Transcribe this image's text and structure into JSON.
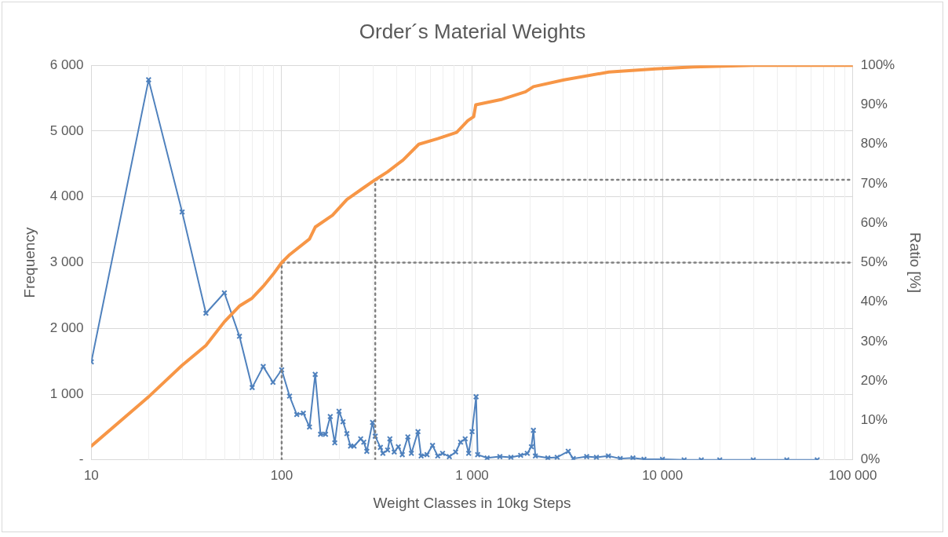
{
  "chart_data": {
    "type": "line",
    "title": "Order´s Material Weights",
    "xlabel": "Weight Classes in 10kg Steps",
    "ylabel": "Frequency",
    "y2label": "Ratio [%]",
    "log": "x",
    "grid": true,
    "legend": false,
    "xlim": [
      10,
      100000
    ],
    "xticks": [
      10,
      100,
      {
        "value": 1000,
        "label": "1 000"
      },
      {
        "value": 10000,
        "label": "10 000"
      },
      {
        "value": 100000,
        "label": "100 000"
      }
    ],
    "ylim": [
      0,
      6000
    ],
    "yticks": [
      {
        "value": 0,
        "label": "-"
      },
      {
        "value": 1000,
        "label": "1 000"
      },
      {
        "value": 2000,
        "label": "2 000"
      },
      {
        "value": 3000,
        "label": "3 000"
      },
      {
        "value": 4000,
        "label": "4 000"
      },
      {
        "value": 5000,
        "label": "5 000"
      },
      {
        "value": 6000,
        "label": "6 000"
      }
    ],
    "y2lim": [
      0,
      100
    ],
    "y2ticks": [
      {
        "value": 0,
        "label": "0%"
      },
      {
        "value": 10,
        "label": "10%"
      },
      {
        "value": 20,
        "label": "20%"
      },
      {
        "value": 30,
        "label": "30%"
      },
      {
        "value": 40,
        "label": "40%"
      },
      {
        "value": 50,
        "label": "50%"
      },
      {
        "value": 60,
        "label": "60%"
      },
      {
        "value": 70,
        "label": "70%"
      },
      {
        "value": 80,
        "label": "80%"
      },
      {
        "value": 90,
        "label": "90%"
      },
      {
        "value": 100,
        "label": "100%"
      }
    ],
    "series": [
      {
        "type": "line",
        "color": "#f79646",
        "marker": "none",
        "line_style": "solid",
        "axis": "y2",
        "x": [
          10,
          20,
          30,
          40,
          50,
          60,
          70,
          80,
          90,
          100,
          110,
          140,
          150,
          185,
          220,
          270,
          310,
          360,
          434,
          525,
          660,
          830,
          950,
          1020,
          1046,
          1440,
          1910,
          2100,
          3040,
          5230,
          9180,
          14600,
          30000,
          100000
        ],
        "values": [
          3.5,
          16,
          24,
          29,
          35,
          39,
          41,
          44,
          47,
          50,
          52,
          56,
          59,
          62,
          66,
          69,
          71,
          73,
          76,
          80,
          81.4,
          83,
          86,
          87,
          90,
          91.4,
          93.3,
          94.6,
          96.3,
          98.3,
          99.1,
          99.6,
          100,
          100
        ]
      },
      {
        "type": "line",
        "color": "#4f81bd",
        "marker": "cross",
        "line_style": "solid",
        "x": [
          10,
          20,
          30,
          40,
          50,
          60,
          70,
          80,
          90,
          100,
          110,
          120,
          130,
          140,
          150,
          160,
          170,
          180,
          190,
          200,
          210,
          220,
          230,
          240,
          260,
          270,
          280,
          300,
          310,
          330,
          340,
          360,
          370,
          390,
          410,
          430,
          460,
          480,
          520,
          540,
          580,
          620,
          660,
          700,
          760,
          820,
          870,
          920,
          960,
          1000,
          1050,
          1070,
          1200,
          1400,
          1600,
          1800,
          1950,
          2050,
          2100,
          2150,
          2500,
          2800,
          3200,
          3400,
          4000,
          4500,
          5200,
          6000,
          7000,
          8000,
          10000,
          13000,
          16000,
          20000,
          30000,
          45000,
          65000
        ],
        "values": [
          1490,
          5780,
          3770,
          2230,
          2540,
          1880,
          1100,
          1420,
          1180,
          1370,
          970,
          690,
          710,
          500,
          1300,
          390,
          390,
          660,
          260,
          740,
          580,
          400,
          210,
          210,
          320,
          270,
          130,
          570,
          360,
          190,
          100,
          150,
          320,
          120,
          200,
          80,
          350,
          100,
          430,
          60,
          80,
          220,
          60,
          100,
          50,
          120,
          270,
          320,
          100,
          430,
          960,
          80,
          30,
          50,
          40,
          70,
          100,
          200,
          450,
          60,
          30,
          40,
          130,
          20,
          50,
          40,
          60,
          20,
          30,
          10,
          10,
          0,
          0,
          0,
          0,
          0,
          0
        ]
      },
      {
        "type": "line",
        "color": "#808080",
        "marker": "none",
        "line_style": "dotted",
        "axis": "y2",
        "x": [
          100,
          100,
          100000
        ],
        "values": [
          0,
          50,
          50
        ]
      },
      {
        "type": "line",
        "color": "#808080",
        "marker": "none",
        "line_style": "dotted",
        "axis": "y2",
        "x": [
          310,
          310,
          100000
        ],
        "values": [
          0,
          71,
          71
        ]
      }
    ]
  }
}
